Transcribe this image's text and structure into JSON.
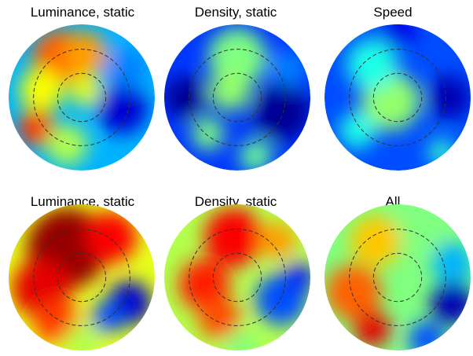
{
  "chart_data": [
    {
      "type": "heatmap",
      "title": "Luminance, static",
      "style": "disk-map",
      "guide_rings": 2,
      "colormap": "jet",
      "palette": [
        "#00008f",
        "#0000ff",
        "#00ffff",
        "#ffff00",
        "#ff0000",
        "#800000"
      ],
      "hotspots": [
        {
          "pos": [
            -0.3,
            -0.55
          ],
          "spread": 0.38,
          "value": 0.78
        },
        {
          "pos": [
            0.05,
            -0.6
          ],
          "spread": 0.3,
          "value": 0.72
        },
        {
          "pos": [
            -0.55,
            -0.1
          ],
          "spread": 0.3,
          "value": 0.62
        },
        {
          "pos": [
            -0.62,
            0.42
          ],
          "spread": 0.25,
          "value": 0.82
        },
        {
          "pos": [
            0.05,
            -0.1
          ],
          "spread": 0.22,
          "value": 0.6
        },
        {
          "pos": [
            -0.2,
            0.65
          ],
          "spread": 0.28,
          "value": 0.55
        },
        {
          "pos": [
            0.55,
            0.15
          ],
          "spread": 0.35,
          "value": 0.08
        },
        {
          "pos": [
            0.6,
            -0.4
          ],
          "spread": 0.28,
          "value": 0.25
        }
      ],
      "background_value": 0.3
    },
    {
      "type": "heatmap",
      "title": "Density, static",
      "style": "disk-map",
      "guide_rings": 2,
      "colormap": "jet",
      "hotspots": [
        {
          "pos": [
            0.0,
            -0.55
          ],
          "spread": 0.4,
          "value": 0.5
        },
        {
          "pos": [
            -0.1,
            -0.1
          ],
          "spread": 0.28,
          "value": 0.52
        },
        {
          "pos": [
            -0.4,
            0.5
          ],
          "spread": 0.22,
          "value": 0.5
        },
        {
          "pos": [
            0.25,
            0.8
          ],
          "spread": 0.22,
          "value": 0.48
        },
        {
          "pos": [
            -0.7,
            0.0
          ],
          "spread": 0.3,
          "value": 0.02
        },
        {
          "pos": [
            0.6,
            0.2
          ],
          "spread": 0.4,
          "value": 0.02
        },
        {
          "pos": [
            0.7,
            -0.4
          ],
          "spread": 0.25,
          "value": 0.25
        }
      ],
      "background_value": 0.18
    },
    {
      "type": "heatmap",
      "title": "Speed",
      "style": "disk-map",
      "guide_rings": 2,
      "colormap": "jet",
      "hotspots": [
        {
          "pos": [
            -0.1,
            0.05
          ],
          "spread": 0.4,
          "value": 0.52
        },
        {
          "pos": [
            -0.35,
            -0.45
          ],
          "spread": 0.35,
          "value": 0.4
        },
        {
          "pos": [
            -0.55,
            0.45
          ],
          "spread": 0.25,
          "value": 0.4
        },
        {
          "pos": [
            0.6,
            0.75
          ],
          "spread": 0.18,
          "value": 0.42
        },
        {
          "pos": [
            0.7,
            0.0
          ],
          "spread": 0.3,
          "value": 0.05
        },
        {
          "pos": [
            0.0,
            -0.9
          ],
          "spread": 0.25,
          "value": 0.1
        }
      ],
      "background_value": 0.2
    },
    {
      "type": "heatmap",
      "title": "Luminance, static",
      "style": "disk-map",
      "guide_rings": 2,
      "colormap": "jet",
      "hotspots": [
        {
          "pos": [
            -0.2,
            -0.4
          ],
          "spread": 0.55,
          "value": 0.98
        },
        {
          "pos": [
            -0.55,
            0.15
          ],
          "spread": 0.4,
          "value": 0.9
        },
        {
          "pos": [
            -0.35,
            0.6
          ],
          "spread": 0.3,
          "value": 0.82
        },
        {
          "pos": [
            0.4,
            -0.55
          ],
          "spread": 0.35,
          "value": 0.88
        },
        {
          "pos": [
            0.0,
            0.9
          ],
          "spread": 0.25,
          "value": 0.55
        },
        {
          "pos": [
            0.65,
            0.35
          ],
          "spread": 0.3,
          "value": 0.08
        },
        {
          "pos": [
            0.35,
            0.55
          ],
          "spread": 0.22,
          "value": 0.2
        }
      ],
      "background_value": 0.6
    },
    {
      "type": "heatmap",
      "title": "Density, static",
      "style": "disk-map",
      "guide_rings": 2,
      "colormap": "jet",
      "hotspots": [
        {
          "pos": [
            -0.05,
            -0.55
          ],
          "spread": 0.4,
          "value": 0.88
        },
        {
          "pos": [
            -0.45,
            0.1
          ],
          "spread": 0.35,
          "value": 0.85
        },
        {
          "pos": [
            -0.25,
            0.55
          ],
          "spread": 0.28,
          "value": 0.8
        },
        {
          "pos": [
            0.55,
            -0.5
          ],
          "spread": 0.25,
          "value": 0.72
        },
        {
          "pos": [
            0.05,
            0.95
          ],
          "spread": 0.22,
          "value": 0.5
        },
        {
          "pos": [
            0.6,
            0.3
          ],
          "spread": 0.35,
          "value": 0.2
        },
        {
          "pos": [
            0.85,
            0.0
          ],
          "spread": 0.2,
          "value": 0.15
        }
      ],
      "background_value": 0.55
    },
    {
      "type": "heatmap",
      "title": "All",
      "style": "disk-map",
      "guide_rings": 2,
      "colormap": "jet",
      "hotspots": [
        {
          "pos": [
            -0.6,
            0.2
          ],
          "spread": 0.38,
          "value": 0.78
        },
        {
          "pos": [
            -0.35,
            0.7
          ],
          "spread": 0.25,
          "value": 0.9
        },
        {
          "pos": [
            -0.3,
            -0.5
          ],
          "spread": 0.35,
          "value": 0.68
        },
        {
          "pos": [
            0.3,
            -0.7
          ],
          "spread": 0.3,
          "value": 0.5
        },
        {
          "pos": [
            0.75,
            0.35
          ],
          "spread": 0.3,
          "value": 0.05
        },
        {
          "pos": [
            0.4,
            0.85
          ],
          "spread": 0.25,
          "value": 0.2
        },
        {
          "pos": [
            0.75,
            -0.2
          ],
          "spread": 0.28,
          "value": 0.3
        }
      ],
      "background_value": 0.5
    }
  ]
}
